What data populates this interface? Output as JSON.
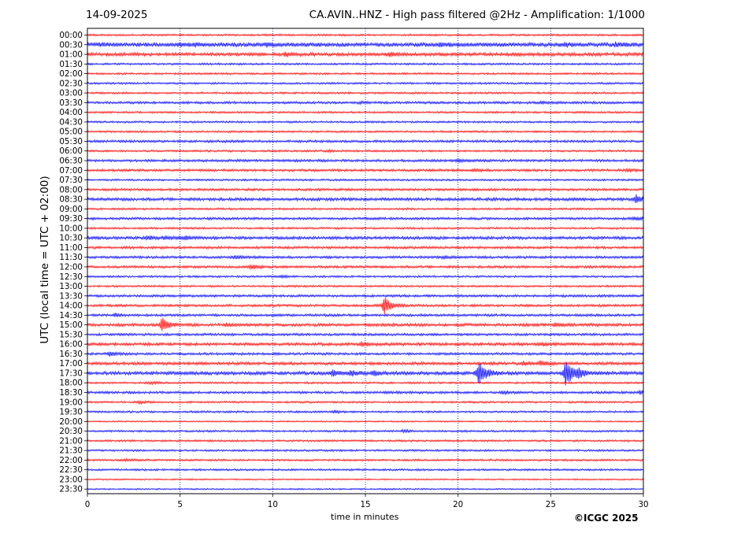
{
  "header": {
    "date": "14-09-2025",
    "title": "CA.AVIN..HNZ - High pass filtered @2Hz - Amplification: 1/1000"
  },
  "footer": {
    "copyright": "©ICGC 2025"
  },
  "colors": {
    "trace_a": "#ff0000",
    "trace_b": "#0000ff",
    "grid": "#000080",
    "axis": "#000000"
  },
  "chart_data": {
    "type": "line",
    "title": "CA.AVIN..HNZ - High pass filtered @2Hz - Amplification: 1/1000",
    "xlabel": "time in minutes",
    "ylabel": "UTC (local time = UTC + 02:00)",
    "xlim": [
      0,
      30
    ],
    "x_ticks": [
      0,
      5,
      10,
      15,
      20,
      25,
      30
    ],
    "vertical_gridlines": [
      5,
      10,
      15,
      20,
      25
    ],
    "grid": "vertical dotted",
    "row_labels": [
      "00:00",
      "00:30",
      "01:00",
      "01:30",
      "02:00",
      "02:30",
      "03:00",
      "03:30",
      "04:00",
      "04:30",
      "05:00",
      "05:30",
      "06:00",
      "06:30",
      "07:00",
      "07:30",
      "08:00",
      "08:30",
      "09:00",
      "09:30",
      "10:00",
      "10:30",
      "11:00",
      "11:30",
      "12:00",
      "12:30",
      "13:00",
      "13:30",
      "14:00",
      "14:30",
      "15:00",
      "15:30",
      "16:00",
      "16:30",
      "17:00",
      "17:30",
      "18:00",
      "18:30",
      "19:00",
      "19:30",
      "20:00",
      "20:30",
      "21:00",
      "21:30",
      "22:00",
      "22:30",
      "23:00",
      "23:30"
    ],
    "trace_colors": "alternating red (even rows) / blue (odd rows)",
    "noise_level": [
      0.2,
      0.4,
      0.35,
      0.2,
      0.2,
      0.2,
      0.2,
      0.25,
      0.2,
      0.2,
      0.2,
      0.25,
      0.2,
      0.25,
      0.25,
      0.2,
      0.25,
      0.3,
      0.2,
      0.25,
      0.2,
      0.3,
      0.25,
      0.25,
      0.25,
      0.2,
      0.2,
      0.25,
      0.25,
      0.25,
      0.3,
      0.25,
      0.3,
      0.25,
      0.3,
      0.35,
      0.2,
      0.25,
      0.2,
      0.2,
      0.15,
      0.2,
      0.2,
      0.2,
      0.2,
      0.2,
      0.15,
      0.15
    ],
    "events": [
      {
        "row": "00:30",
        "minute": 0.7,
        "amplitude": 0.25
      },
      {
        "row": "00:30",
        "minute": 5.0,
        "amplitude": 0.25
      },
      {
        "row": "00:30",
        "minute": 5.8,
        "amplitude": 0.2
      },
      {
        "row": "00:30",
        "minute": 9.6,
        "amplitude": 0.3
      },
      {
        "row": "00:30",
        "minute": 19.0,
        "amplitude": 0.35
      },
      {
        "row": "00:30",
        "minute": 25.8,
        "amplitude": 0.3
      },
      {
        "row": "00:30",
        "minute": 28.5,
        "amplitude": 0.25
      },
      {
        "row": "01:00",
        "minute": 10.7,
        "amplitude": 0.35
      },
      {
        "row": "01:00",
        "minute": 16.3,
        "amplitude": 0.35
      },
      {
        "row": "03:30",
        "minute": 14.7,
        "amplitude": 0.15
      },
      {
        "row": "03:30",
        "minute": 24.5,
        "amplitude": 0.2
      },
      {
        "row": "06:00",
        "minute": 13.0,
        "amplitude": 0.2
      },
      {
        "row": "06:30",
        "minute": 20.0,
        "amplitude": 0.25
      },
      {
        "row": "07:00",
        "minute": 20.8,
        "amplitude": 0.25
      },
      {
        "row": "07:00",
        "minute": 29.1,
        "amplitude": 0.2
      },
      {
        "row": "08:30",
        "minute": 29.6,
        "amplitude": 0.9
      },
      {
        "row": "09:30",
        "minute": 29.5,
        "amplitude": 0.3
      },
      {
        "row": "10:30",
        "minute": 3.2,
        "amplitude": 0.4
      },
      {
        "row": "10:30",
        "minute": 4.2,
        "amplitude": 0.35
      },
      {
        "row": "10:30",
        "minute": 5.3,
        "amplitude": 0.35
      },
      {
        "row": "11:30",
        "minute": 8.0,
        "amplitude": 0.3
      },
      {
        "row": "11:30",
        "minute": 19.2,
        "amplitude": 0.25
      },
      {
        "row": "12:00",
        "minute": 8.8,
        "amplitude": 0.55
      },
      {
        "row": "12:30",
        "minute": 10.5,
        "amplitude": 0.2
      },
      {
        "row": "14:00",
        "minute": 16.0,
        "amplitude": 2.2
      },
      {
        "row": "14:30",
        "minute": 1.5,
        "amplitude": 0.35
      },
      {
        "row": "15:00",
        "minute": 4.0,
        "amplitude": 1.6
      },
      {
        "row": "15:00",
        "minute": 7.5,
        "amplitude": 0.25
      },
      {
        "row": "15:00",
        "minute": 25.2,
        "amplitude": 0.35
      },
      {
        "row": "16:00",
        "minute": 14.8,
        "amplitude": 0.5
      },
      {
        "row": "16:00",
        "minute": 24.5,
        "amplitude": 0.3
      },
      {
        "row": "16:30",
        "minute": 1.2,
        "amplitude": 0.45
      },
      {
        "row": "17:00",
        "minute": 23.5,
        "amplitude": 0.4
      },
      {
        "row": "17:00",
        "minute": 24.4,
        "amplitude": 0.45
      },
      {
        "row": "17:30",
        "minute": 13.2,
        "amplitude": 0.6
      },
      {
        "row": "17:30",
        "minute": 14.2,
        "amplitude": 0.55
      },
      {
        "row": "17:30",
        "minute": 15.4,
        "amplitude": 0.5
      },
      {
        "row": "17:30",
        "minute": 21.1,
        "amplitude": 3.0
      },
      {
        "row": "17:30",
        "minute": 25.8,
        "amplitude": 3.2
      },
      {
        "row": "17:30",
        "minute": 26.5,
        "amplitude": 0.8
      },
      {
        "row": "18:00",
        "minute": 3.4,
        "amplitude": 0.25
      },
      {
        "row": "18:30",
        "minute": 22.5,
        "amplitude": 0.3
      },
      {
        "row": "18:30",
        "minute": 29.8,
        "amplitude": 0.3
      },
      {
        "row": "19:00",
        "minute": 2.8,
        "amplitude": 0.25
      },
      {
        "row": "19:30",
        "minute": 13.3,
        "amplitude": 0.25
      },
      {
        "row": "20:30",
        "minute": 17.0,
        "amplitude": 0.25
      },
      {
        "row": "22:00",
        "minute": 2.0,
        "amplitude": 0.25
      }
    ]
  }
}
